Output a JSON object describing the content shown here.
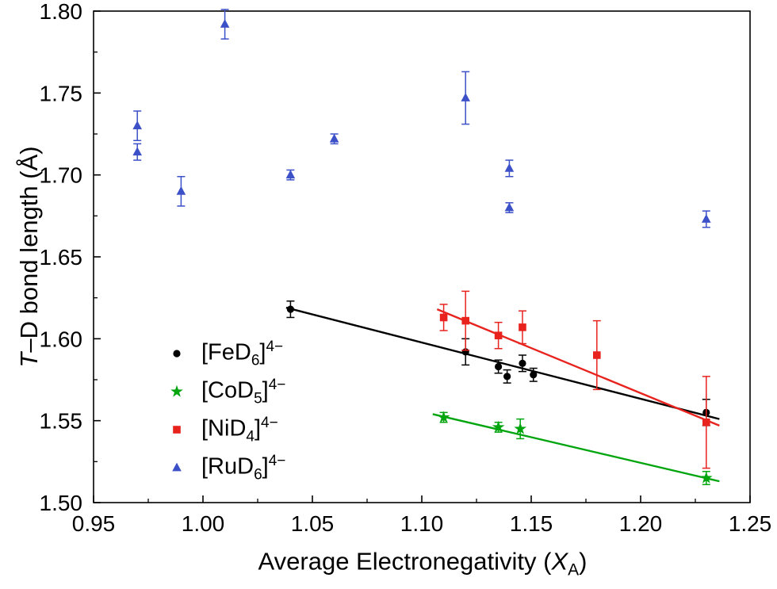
{
  "figure": {
    "background": "#ffffff"
  },
  "chart_data": {
    "type": "scatter",
    "title": "",
    "xlabel": "Average Electronegativity (XA)",
    "ylabel": "T–D bond length (Å)",
    "xlabel_parts": {
      "pre": "Average Electronegativity (",
      "italic": "X",
      "sub": "A",
      "post": ")"
    },
    "ylabel_parts": {
      "italic": "T",
      "rest": "–D bond length (Å)"
    },
    "xlim": [
      0.95,
      1.25
    ],
    "ylim": [
      1.5,
      1.8
    ],
    "xticks": [
      0.95,
      1.0,
      1.05,
      1.1,
      1.15,
      1.2,
      1.25
    ],
    "yticks": [
      1.5,
      1.55,
      1.6,
      1.65,
      1.7,
      1.75,
      1.8
    ],
    "grid": false,
    "legend_position": "inside-lower-left",
    "series": [
      {
        "name": "[FeD6]4−",
        "label_parts": {
          "pre": "[FeD",
          "sub": "6",
          "mid": "]",
          "sup": "4−"
        },
        "marker": "circle",
        "color": "#000000",
        "points": [
          {
            "x": 1.04,
            "y": 1.618,
            "err": 0.005
          },
          {
            "x": 1.12,
            "y": 1.592,
            "err": 0.008
          },
          {
            "x": 1.135,
            "y": 1.583,
            "err": 0.004
          },
          {
            "x": 1.139,
            "y": 1.577,
            "err": 0.004
          },
          {
            "x": 1.146,
            "y": 1.585,
            "err": 0.005
          },
          {
            "x": 1.151,
            "y": 1.578,
            "err": 0.004
          },
          {
            "x": 1.23,
            "y": 1.555,
            "err": 0.008
          }
        ],
        "fit_line": {
          "x1": 1.038,
          "y1": 1.619,
          "x2": 1.236,
          "y2": 1.551
        }
      },
      {
        "name": "[CoD5]4−",
        "label_parts": {
          "pre": "[CoD",
          "sub": "5",
          "mid": "]",
          "sup": "4−"
        },
        "marker": "star",
        "color": "#00a50e",
        "points": [
          {
            "x": 1.11,
            "y": 1.552,
            "err": 0.003
          },
          {
            "x": 1.135,
            "y": 1.546,
            "err": 0.003
          },
          {
            "x": 1.145,
            "y": 1.545,
            "err": 0.006
          },
          {
            "x": 1.23,
            "y": 1.515,
            "err": 0.004
          }
        ],
        "fit_line": {
          "x1": 1.105,
          "y1": 1.554,
          "x2": 1.236,
          "y2": 1.513
        }
      },
      {
        "name": "[NiD4]4−",
        "label_parts": {
          "pre": "[NiD",
          "sub": "4",
          "mid": "]",
          "sup": "4−"
        },
        "marker": "square",
        "color": "#e8231e",
        "points": [
          {
            "x": 1.11,
            "y": 1.613,
            "err": 0.008
          },
          {
            "x": 1.12,
            "y": 1.611,
            "err": 0.018
          },
          {
            "x": 1.135,
            "y": 1.602,
            "err": 0.008
          },
          {
            "x": 1.146,
            "y": 1.607,
            "err": 0.01
          },
          {
            "x": 1.18,
            "y": 1.59,
            "err": 0.021
          },
          {
            "x": 1.23,
            "y": 1.549,
            "err": 0.028
          }
        ],
        "fit_line": {
          "x1": 1.107,
          "y1": 1.618,
          "x2": 1.236,
          "y2": 1.547
        }
      },
      {
        "name": "[RuD6]4−",
        "label_parts": {
          "pre": "[RuD",
          "sub": "6",
          "mid": "]",
          "sup": "4−"
        },
        "marker": "triangle",
        "color": "#3c50c8",
        "points": [
          {
            "x": 0.97,
            "y": 1.73,
            "err": 0.009
          },
          {
            "x": 0.97,
            "y": 1.714,
            "err": 0.005
          },
          {
            "x": 0.99,
            "y": 1.69,
            "err": 0.009
          },
          {
            "x": 1.01,
            "y": 1.792,
            "err": 0.009
          },
          {
            "x": 1.04,
            "y": 1.7,
            "err": 0.003
          },
          {
            "x": 1.06,
            "y": 1.722,
            "err": 0.003
          },
          {
            "x": 1.12,
            "y": 1.747,
            "err": 0.016
          },
          {
            "x": 1.14,
            "y": 1.704,
            "err": 0.005
          },
          {
            "x": 1.14,
            "y": 1.68,
            "err": 0.003
          },
          {
            "x": 1.23,
            "y": 1.673,
            "err": 0.005
          }
        ],
        "fit_line": null
      }
    ]
  }
}
